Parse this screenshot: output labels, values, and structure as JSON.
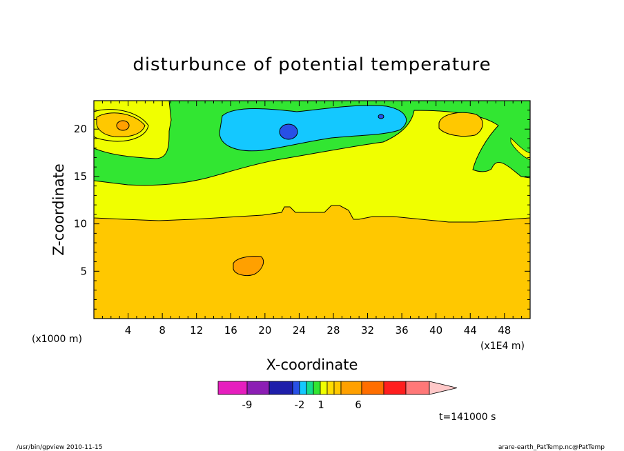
{
  "chart_data": {
    "type": "heatmap",
    "title": "disturbunce of potential temperature",
    "xlabel": "X-coordinate",
    "ylabel": "Z-coordinate",
    "x_units": "(x1000 m)",
    "x_scale_note": "(x1E4 m)",
    "xlim": [
      0,
      51
    ],
    "ylim": [
      0,
      23
    ],
    "x_ticks": [
      4,
      8,
      12,
      16,
      20,
      24,
      28,
      32,
      36,
      40,
      44,
      48
    ],
    "y_ticks": [
      5,
      10,
      15,
      20
    ],
    "time_label": "t=141000 s",
    "colorbar": {
      "labels": [
        {
          "at": -9,
          "text": "-9"
        },
        {
          "at": -2,
          "text": "-2"
        },
        {
          "at": 1,
          "text": "1"
        },
        {
          "at": 6,
          "text": "6"
        }
      ],
      "colors": [
        "#e61ebe",
        "#8c1eb4",
        "#1e1eaa",
        "#2850e6",
        "#14c8ff",
        "#14dc8c",
        "#32e632",
        "#f0ff00",
        "#ffdc00",
        "#ffc800",
        "#ffa000",
        "#ff6e00",
        "#ff1e1e",
        "#ff7878"
      ],
      "over_color": "#ffc8c8"
    },
    "regions": [
      {
        "level": "orange",
        "color": "#ffc800",
        "description": "z from 0 to ~10.5 everywhere; warm patches near (3.5,20.5), (42.5,20.5), (18,5.5)"
      },
      {
        "level": "yellow",
        "color": "#f0ff00",
        "description": "band z ~10.5 to ~15-17"
      },
      {
        "level": "green",
        "color": "#32e632",
        "description": "band above yellow up to top, z ~15-23"
      },
      {
        "level": "cyan",
        "color": "#14c8ff",
        "description": "patch x ~15 to 36, z ~18.5 to 22.5"
      },
      {
        "level": "blue",
        "color": "#2850e6",
        "description": "small patches near (22.7,19.6) and (33.5,21.2)"
      }
    ]
  },
  "footer": {
    "left": "/usr/bin/gpview  2010-11-15",
    "right": "arare-earth_PatTemp.nc@PatTemp"
  }
}
